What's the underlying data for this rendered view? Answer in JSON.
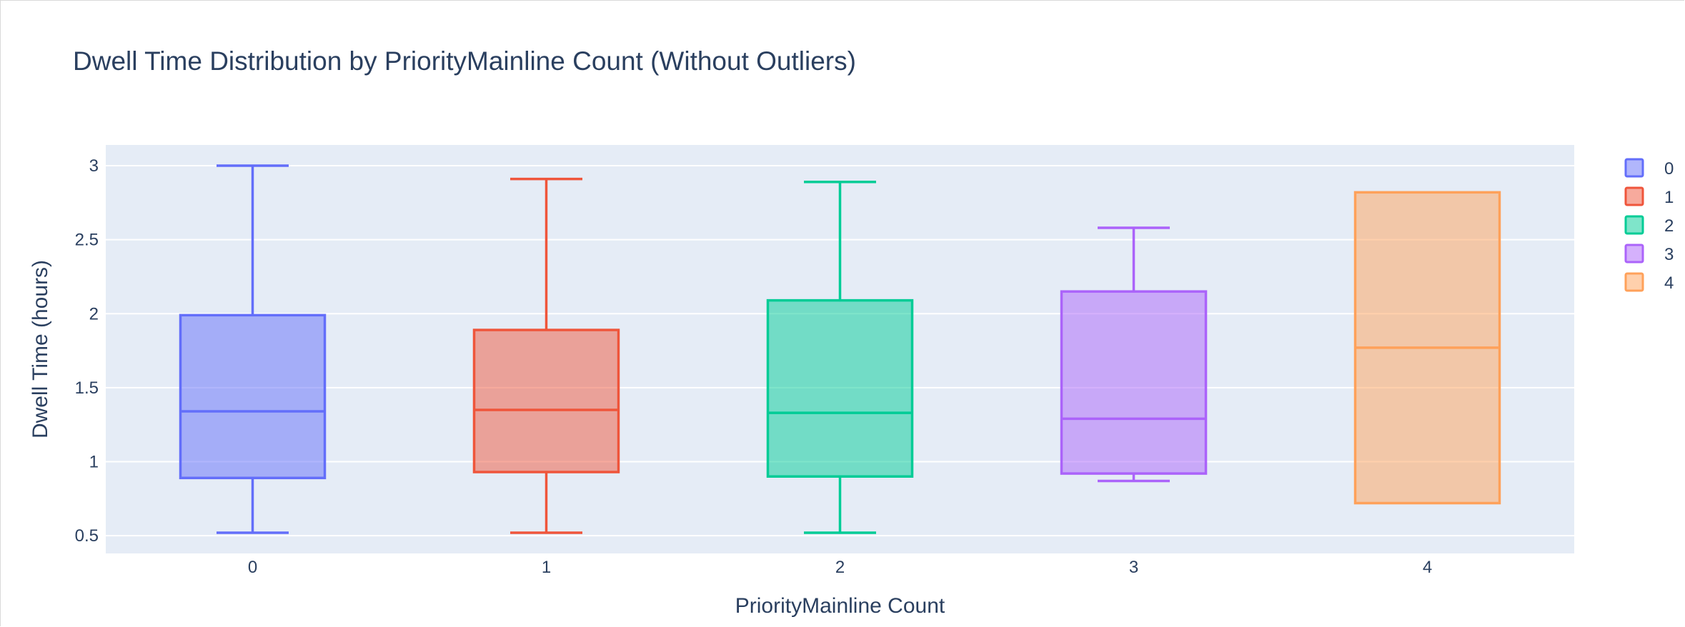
{
  "chart_data": {
    "type": "box",
    "title": "Dwell Time Distribution by PriorityMainline Count (Without Outliers)",
    "xlabel": "PriorityMainline Count",
    "ylabel": "Dwell Time (hours)",
    "ylim": [
      0.38,
      3.14
    ],
    "yticks": [
      0.5,
      1,
      1.5,
      2,
      2.5,
      3
    ],
    "ytick_labels": [
      "0.5",
      "1",
      "1.5",
      "2",
      "2.5",
      "3"
    ],
    "categories": [
      "0",
      "1",
      "2",
      "3",
      "4"
    ],
    "grid": true,
    "legend_position": "right",
    "series": [
      {
        "name": "0",
        "color": "#636efa",
        "min": 0.52,
        "q1": 0.89,
        "median": 1.34,
        "q3": 1.99,
        "max": 3.0
      },
      {
        "name": "1",
        "color": "#ef553b",
        "min": 0.52,
        "q1": 0.93,
        "median": 1.35,
        "q3": 1.89,
        "max": 2.91
      },
      {
        "name": "2",
        "color": "#00cc96",
        "min": 0.52,
        "q1": 0.9,
        "median": 1.33,
        "q3": 2.09,
        "max": 2.89
      },
      {
        "name": "3",
        "color": "#ab63fa",
        "min": 0.87,
        "q1": 0.92,
        "median": 1.29,
        "q3": 2.15,
        "max": 2.58
      },
      {
        "name": "4",
        "color": "#ffa15a",
        "min": 0.72,
        "q1": 0.72,
        "median": 1.77,
        "q3": 2.82,
        "max": 2.82
      }
    ]
  }
}
